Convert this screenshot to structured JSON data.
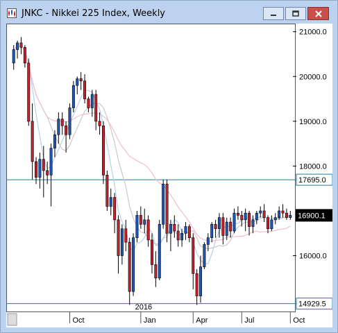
{
  "window": {
    "title": "JNKC - Nikkei 225 Index, Weekly",
    "buttons": [
      "minimize-icon",
      "maximize-icon",
      "close-icon"
    ]
  },
  "chart_data": {
    "type": "candlestick",
    "title": "JNKC - Nikkei 225 Index, Weekly",
    "y_axis_position": "right",
    "ylim": [
      14800,
      21150
    ],
    "y_ticks": [
      {
        "value": 21000,
        "label": "21000.0"
      },
      {
        "value": 20000,
        "label": "20000.0"
      },
      {
        "value": 19000,
        "label": "19000.0"
      },
      {
        "value": 18000,
        "label": "18000.0"
      },
      {
        "value": 16000,
        "label": "16000.0"
      }
    ],
    "x_ticks": [
      {
        "index": 15,
        "label": "Oct"
      },
      {
        "index": 34,
        "label": "Jan"
      },
      {
        "index": 48,
        "label": "Apr"
      },
      {
        "index": 61,
        "label": "Jul"
      },
      {
        "index": 74,
        "label": "Oct"
      }
    ],
    "year_marker": {
      "index": 31,
      "label": "2016"
    },
    "horizontal_lines": [
      {
        "value": 17695.0,
        "label": "17695.0",
        "color": "#1f7ca0"
      },
      {
        "value": 14929.5,
        "label": "14929.5",
        "color": "#1f7ca0"
      }
    ],
    "last_price": {
      "value": 16900.1,
      "label": "16900.1",
      "color": "#000000"
    },
    "colors": {
      "up": "#2158b8",
      "down": "#c8212d",
      "ma_fast": "#b7cfe9",
      "ma_mid": "#c9c9c9",
      "ma_slow": "#f2bcd0"
    },
    "candles": [
      [
        20300,
        20700,
        20150,
        20600
      ],
      [
        20600,
        20800,
        20400,
        20750
      ],
      [
        20750,
        20880,
        20500,
        20650
      ],
      [
        20650,
        20700,
        20200,
        20300
      ],
      [
        20300,
        20400,
        18900,
        19000
      ],
      [
        19000,
        19400,
        17700,
        18100
      ],
      [
        18100,
        18200,
        17600,
        17750
      ],
      [
        17750,
        18300,
        17500,
        18150
      ],
      [
        18150,
        18450,
        17300,
        17900
      ],
      [
        17900,
        18100,
        17600,
        17800
      ],
      [
        17800,
        18500,
        17100,
        18400
      ],
      [
        18400,
        18800,
        18200,
        18700
      ],
      [
        18700,
        19200,
        18500,
        19050
      ],
      [
        19050,
        19200,
        18700,
        18900
      ],
      [
        18900,
        19000,
        18300,
        18700
      ],
      [
        18700,
        19400,
        18600,
        19300
      ],
      [
        19300,
        19900,
        19200,
        19800
      ],
      [
        19800,
        20000,
        19600,
        19950
      ],
      [
        19950,
        20100,
        19700,
        19900
      ],
      [
        19900,
        20050,
        19400,
        19500
      ],
      [
        19500,
        19550,
        19200,
        19300
      ],
      [
        19300,
        19700,
        19100,
        19600
      ],
      [
        19600,
        19700,
        18800,
        19000
      ],
      [
        19000,
        19200,
        18700,
        18900
      ],
      [
        18900,
        19000,
        17600,
        17800
      ],
      [
        17800,
        17900,
        17000,
        17100
      ],
      [
        17100,
        17500,
        16900,
        17300
      ],
      [
        17300,
        17400,
        16500,
        16800
      ],
      [
        16800,
        16900,
        15600,
        16000
      ],
      [
        16000,
        16700,
        15800,
        16600
      ],
      [
        16600,
        16800,
        16100,
        16300
      ],
      [
        16300,
        16400,
        14900,
        15200
      ],
      [
        15200,
        16500,
        15100,
        16400
      ],
      [
        16400,
        17000,
        16300,
        16900
      ],
      [
        16900,
        17100,
        16600,
        16700
      ],
      [
        16700,
        17050,
        16500,
        16800
      ],
      [
        16800,
        16900,
        16200,
        16350
      ],
      [
        16350,
        16500,
        15600,
        15800
      ],
      [
        15800,
        16100,
        15300,
        15500
      ],
      [
        15500,
        16800,
        15450,
        16700
      ],
      [
        16700,
        17700,
        16600,
        17600
      ],
      [
        17600,
        17700,
        16300,
        16500
      ],
      [
        16500,
        16800,
        16100,
        16700
      ],
      [
        16700,
        16900,
        16400,
        16550
      ],
      [
        16550,
        16700,
        16200,
        16350
      ],
      [
        16350,
        16600,
        16200,
        16500
      ],
      [
        16500,
        16750,
        16350,
        16650
      ],
      [
        16650,
        16700,
        16300,
        16400
      ],
      [
        16400,
        16500,
        15250,
        15600
      ],
      [
        15600,
        15700,
        14900,
        15100
      ],
      [
        15100,
        16000,
        14950,
        15750
      ],
      [
        15750,
        16300,
        15700,
        16250
      ],
      [
        16250,
        16500,
        16100,
        16400
      ],
      [
        16400,
        16750,
        16300,
        16700
      ],
      [
        16700,
        16800,
        16400,
        16600
      ],
      [
        16600,
        16950,
        16400,
        16850
      ],
      [
        16850,
        16950,
        16250,
        16450
      ],
      [
        16450,
        16850,
        16350,
        16750
      ],
      [
        16750,
        16850,
        16400,
        16550
      ],
      [
        16550,
        17050,
        16500,
        16950
      ],
      [
        16950,
        17100,
        16800,
        16900
      ],
      [
        16900,
        17000,
        16650,
        16800
      ],
      [
        16800,
        17050,
        16550,
        16950
      ],
      [
        16950,
        17000,
        16450,
        16650
      ],
      [
        16650,
        16900,
        16500,
        16800
      ],
      [
        16800,
        17000,
        16700,
        16950
      ],
      [
        16950,
        17100,
        16850,
        17000
      ],
      [
        17000,
        17150,
        16750,
        16850
      ],
      [
        16850,
        16900,
        16500,
        16600
      ],
      [
        16600,
        16900,
        16550,
        16800
      ],
      [
        16800,
        16950,
        16700,
        16850
      ],
      [
        16850,
        17100,
        16800,
        17000
      ],
      [
        17000,
        17150,
        16850,
        16950
      ],
      [
        16950,
        17050,
        16800,
        16850
      ],
      [
        16850,
        17000,
        16800,
        16900
      ]
    ]
  }
}
